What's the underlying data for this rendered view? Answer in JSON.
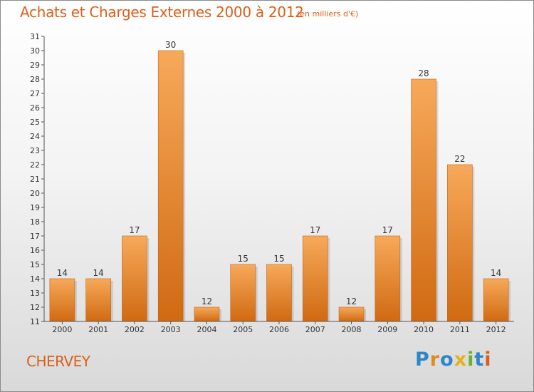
{
  "title": "Achats et Charges Externes 2000 à 2012",
  "subtitle": "(en milliers d'€)",
  "location": "CHERVEY",
  "brand": {
    "name": "Proxiti",
    "letters": [
      {
        "ch": "P",
        "color": "#2e86c8"
      },
      {
        "ch": "r",
        "color": "#e38a1c"
      },
      {
        "ch": "o",
        "color": "#2e86c8"
      },
      {
        "ch": "x",
        "color": "#e3b21c"
      },
      {
        "ch": "i",
        "color": "#6ab42d"
      },
      {
        "ch": "t",
        "color": "#2e86c8"
      },
      {
        "ch": "i",
        "color": "#d9601a"
      }
    ]
  },
  "colors": {
    "bar_light": "#f7a95a",
    "bar_dark": "#d06a12",
    "bar_edge": "#c86414",
    "axis": "#555555",
    "text": "#333333",
    "accent": "#d9601a"
  },
  "chart_data": {
    "type": "bar",
    "categories": [
      "2000",
      "2001",
      "2002",
      "2003",
      "2004",
      "2005",
      "2006",
      "2007",
      "2008",
      "2009",
      "2010",
      "2011",
      "2012"
    ],
    "values": [
      14,
      14,
      17,
      30,
      12,
      15,
      15,
      17,
      12,
      17,
      28,
      22,
      14
    ],
    "title": "Achats et Charges Externes 2000 à 2012",
    "xlabel": "",
    "ylabel": "",
    "ylim": [
      11,
      31
    ],
    "yticks": [
      11,
      12,
      13,
      14,
      15,
      16,
      17,
      18,
      19,
      20,
      21,
      22,
      23,
      24,
      25,
      26,
      27,
      28,
      29,
      30,
      31
    ],
    "data_labels": true,
    "grid": false,
    "legend": "none"
  }
}
